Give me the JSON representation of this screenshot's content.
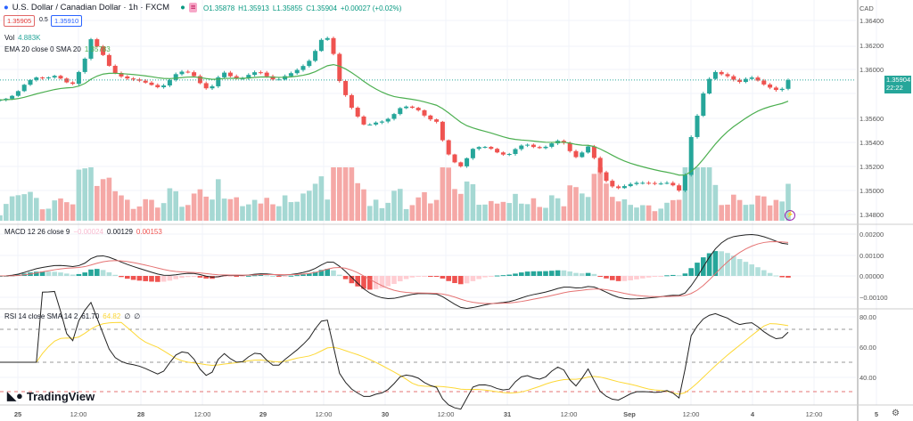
{
  "header": {
    "symbol": "U.S. Dollar / Canadian Dollar · 1h · FXCM",
    "ohlc": {
      "o": "O1.35878",
      "h": "H1.35913",
      "l": "L1.35855",
      "c": "C1.35904",
      "chg": "+0.00027 (+0.02%)"
    },
    "sell_price": "1.35905",
    "spread": "0.5",
    "buy_price": "1.35910"
  },
  "volume_legend": {
    "label": "Vol",
    "value": "4.883K"
  },
  "ema_legend": {
    "label": "EMA 20 close 0 SMA 20",
    "value": "1.35783"
  },
  "macd_legend": {
    "label": "MACD 12 26 close 9",
    "hist": "−0.00024",
    "macd": "0.00129",
    "signal": "0.00153"
  },
  "rsi_legend": {
    "label": "RSI 14 close SMA 14 2",
    "rsi": "61.70",
    "sma": "64.82",
    "a": "∅",
    "b": "∅"
  },
  "price_axis": {
    "currency": "CAD",
    "labels": [
      "1.36400",
      "1.36200",
      "1.36000",
      "1.35600",
      "1.35400",
      "1.35200",
      "1.35000",
      "1.34800"
    ],
    "current_price": "1.35904",
    "countdown": "22:22"
  },
  "macd_axis": [
    "0.00200",
    "0.00100",
    "0.00000",
    "−0.00100"
  ],
  "rsi_axis": [
    "80.00",
    "60.00",
    "40.00"
  ],
  "time_axis": [
    "25",
    "12:00",
    "28",
    "12:00",
    "29",
    "12:00",
    "30",
    "12:00",
    "31",
    "12:00",
    "Sep",
    "12:00",
    "4",
    "12:00",
    "5"
  ],
  "logo": "TradingView",
  "colors": {
    "up": "#26a69a",
    "down": "#ef5350",
    "ema": "#4caf50",
    "rsi": "#7e57c2"
  },
  "price_path": [
    [
      0,
      1.35729
    ],
    [
      20,
      1.35803
    ],
    [
      40,
      1.35914
    ],
    [
      60,
      1.35951
    ],
    [
      80,
      1.3584
    ],
    [
      95,
      1.36099
    ],
    [
      100,
      1.36284
    ],
    [
      110,
      1.36173
    ],
    [
      125,
      1.35988
    ],
    [
      140,
      1.35951
    ],
    [
      160,
      1.35877
    ],
    [
      180,
      1.35862
    ],
    [
      200,
      1.35951
    ],
    [
      215,
      1.35966
    ],
    [
      235,
      1.35803
    ],
    [
      250,
      1.35951
    ],
    [
      270,
      1.35914
    ],
    [
      290,
      1.35951
    ],
    [
      310,
      1.35914
    ],
    [
      330,
      1.35951
    ],
    [
      345,
      1.36062
    ],
    [
      360,
      1.36247
    ],
    [
      370,
      1.36247
    ],
    [
      380,
      1.35914
    ],
    [
      395,
      1.35692
    ],
    [
      410,
      1.35507
    ],
    [
      430,
      1.35581
    ],
    [
      450,
      1.3567
    ],
    [
      470,
      1.35655
    ],
    [
      490,
      1.35544
    ],
    [
      500,
      1.35285
    ],
    [
      515,
      1.35174
    ],
    [
      530,
      1.35322
    ],
    [
      550,
      1.35322
    ],
    [
      570,
      1.35285
    ],
    [
      590,
      1.35359
    ],
    [
      610,
      1.35359
    ],
    [
      630,
      1.35396
    ],
    [
      645,
      1.35285
    ],
    [
      660,
      1.35359
    ],
    [
      675,
      1.351
    ],
    [
      690,
      1.35026
    ],
    [
      710,
      1.35026
    ],
    [
      730,
      1.35063
    ],
    [
      750,
      1.35026
    ],
    [
      765,
      1.34952
    ],
    [
      775,
      1.35433
    ],
    [
      790,
      1.35803
    ],
    [
      800,
      1.35951
    ],
    [
      815,
      1.35951
    ],
    [
      830,
      1.35877
    ],
    [
      845,
      1.35914
    ],
    [
      860,
      1.35877
    ],
    [
      875,
      1.35803
    ],
    [
      887,
      1.35904
    ]
  ]
}
